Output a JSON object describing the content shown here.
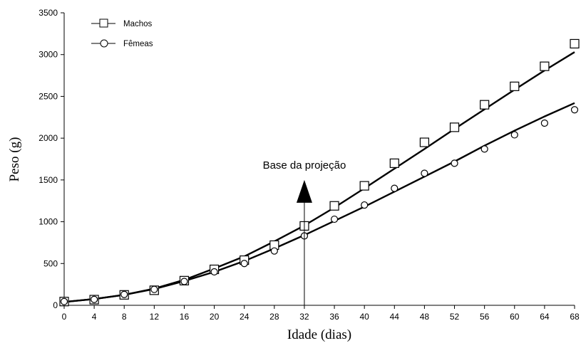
{
  "chart_data": {
    "type": "scatter",
    "xlabel": "Idade (dias)",
    "ylabel": "Peso (g)",
    "xlim": [
      0,
      68
    ],
    "ylim": [
      0,
      3500
    ],
    "xticks": [
      0,
      4,
      8,
      12,
      16,
      20,
      24,
      28,
      32,
      36,
      40,
      44,
      48,
      52,
      56,
      60,
      64,
      68
    ],
    "yticks": [
      0,
      500,
      1000,
      1500,
      2000,
      2500,
      3000,
      3500
    ],
    "grid": false,
    "legend_position": "top-left",
    "annotation": {
      "text": "Base da projeção",
      "x": 32,
      "y_from": 0,
      "y_to": 1500
    },
    "series": [
      {
        "name": "Machos",
        "marker": "square",
        "x": [
          0,
          4,
          8,
          12,
          16,
          20,
          24,
          28,
          32,
          36,
          40,
          44,
          48,
          52,
          56,
          60,
          64,
          68
        ],
        "values": [
          45,
          68,
          125,
          180,
          295,
          430,
          540,
          720,
          950,
          1190,
          1430,
          1700,
          1950,
          2130,
          2400,
          2620,
          2860,
          3130
        ],
        "fit": {
          "x": [
            0,
            4,
            8,
            12,
            16,
            20,
            24,
            28,
            32,
            36,
            40,
            44,
            48,
            52,
            56,
            60,
            64,
            68
          ],
          "values": [
            40,
            75,
            125,
            200,
            305,
            440,
            585,
            765,
            955,
            1170,
            1400,
            1635,
            1870,
            2110,
            2345,
            2580,
            2810,
            3030
          ]
        }
      },
      {
        "name": "Fêmeas",
        "marker": "circle",
        "x": [
          0,
          4,
          8,
          12,
          16,
          20,
          24,
          28,
          32,
          36,
          40,
          44,
          48,
          52,
          56,
          60,
          64,
          68
        ],
        "values": [
          45,
          70,
          130,
          190,
          285,
          400,
          500,
          650,
          830,
          1030,
          1200,
          1400,
          1580,
          1700,
          1870,
          2040,
          2180,
          2340
        ],
        "fit": {
          "x": [
            0,
            4,
            8,
            12,
            16,
            20,
            24,
            28,
            32,
            36,
            40,
            44,
            48,
            52,
            56,
            60,
            64,
            68
          ],
          "values": [
            40,
            75,
            125,
            195,
            290,
            400,
            530,
            680,
            840,
            1010,
            1180,
            1360,
            1540,
            1720,
            1910,
            2090,
            2260,
            2420
          ]
        }
      }
    ]
  }
}
